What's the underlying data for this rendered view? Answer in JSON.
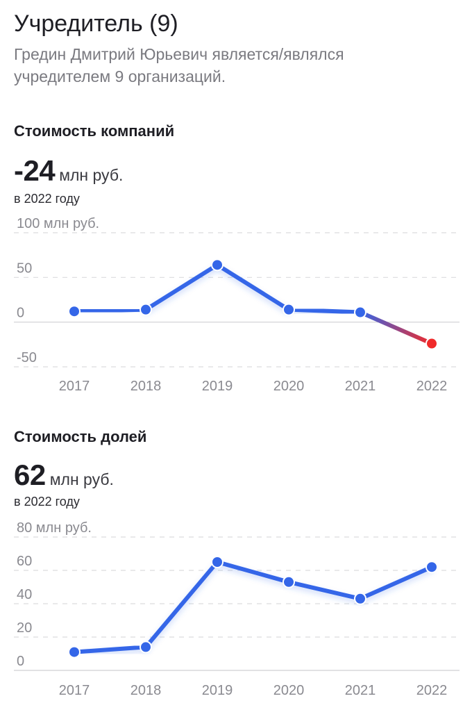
{
  "header": {
    "title": "Учредитель (9)",
    "description": "Гредин Дмитрий Юрьевич является/являлся учредителем 9 организаций."
  },
  "company_value": {
    "section_title": "Стоимость компаний",
    "value": "-24",
    "unit": "млн руб.",
    "year_note": "в 2022 году"
  },
  "share_value": {
    "section_title": "Стоимость долей",
    "value": "62",
    "unit": "млн руб.",
    "year_note": "в 2022 году"
  },
  "colors": {
    "line": "#3466e8",
    "negative": "#f02a2a",
    "grid": "#dcdcde",
    "zero_line": "#cfcfd2"
  },
  "chart_data": [
    {
      "type": "line",
      "title": "Стоимость компаний",
      "categories": [
        "2017",
        "2018",
        "2019",
        "2020",
        "2021",
        "2022"
      ],
      "values": [
        12,
        14,
        64,
        14,
        11,
        -24
      ],
      "ylim": [
        -50,
        100
      ],
      "y_ticks": [
        "100 млн руб.",
        "50",
        "0",
        "-50"
      ],
      "grid": true
    },
    {
      "type": "line",
      "title": "Стоимость долей",
      "categories": [
        "2017",
        "2018",
        "2019",
        "2020",
        "2021",
        "2022"
      ],
      "values": [
        11,
        14,
        65,
        53,
        43,
        62
      ],
      "ylim": [
        0,
        80
      ],
      "y_ticks": [
        "80 млн руб.",
        "60",
        "40",
        "20",
        "0"
      ],
      "grid": true
    }
  ]
}
